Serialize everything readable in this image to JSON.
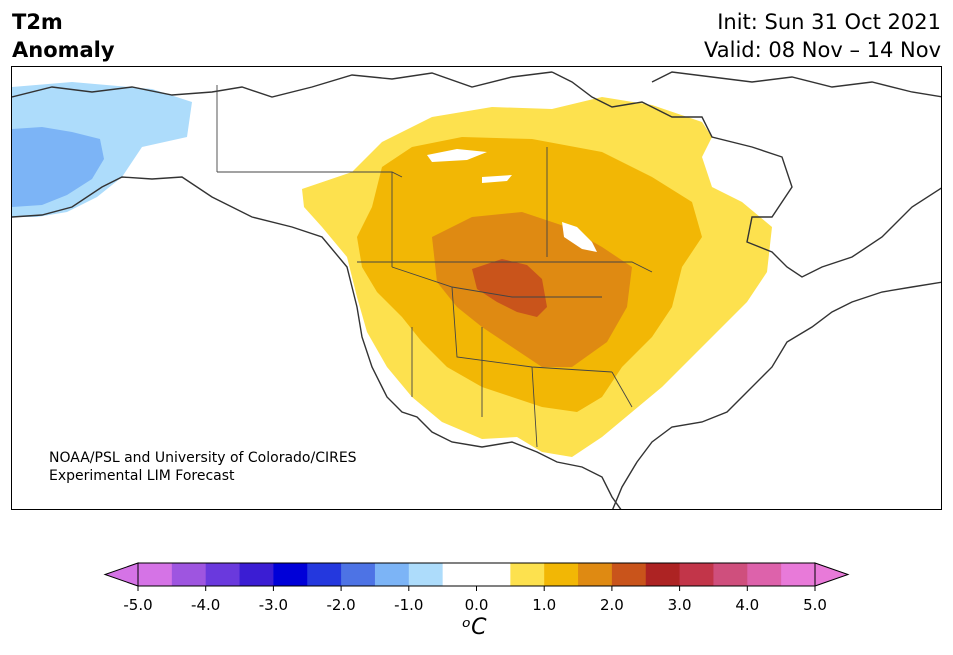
{
  "header": {
    "title_line1": "T2m",
    "title_line2": "Anomaly",
    "init": "Init: Sun 31 Oct 2021",
    "valid": "Valid: 08 Nov – 14 Nov"
  },
  "credit": {
    "line1": "NOAA/PSL and University of Colorado/CIRES",
    "line2": "Experimental LIM Forecast"
  },
  "colorbar": {
    "unit_label": "ᵒC",
    "ticks": [
      "-5.0",
      "-4.0",
      "-3.0",
      "-2.0",
      "-1.0",
      "0.0",
      "1.0",
      "2.0",
      "3.0",
      "4.0",
      "5.0"
    ],
    "colors": [
      "#d573e6",
      "#9e55e0",
      "#6a39dd",
      "#3b1dd3",
      "#0000d8",
      "#2438de",
      "#4d73e5",
      "#7cb4f6",
      "#addcfb",
      "#ffffff",
      "#ffffff",
      "#fde14e",
      "#f2b705",
      "#df8a12",
      "#c9541b",
      "#ad2323",
      "#c23549",
      "#cf4f7d",
      "#dd62ab",
      "#e87ad9"
    ],
    "under_color": "#d573e6",
    "over_color": "#e87ad9"
  },
  "map": {
    "colors": {
      "cold1": "#addcfb",
      "cold2": "#7cb4f6",
      "warm1": "#fde14e",
      "warm2": "#f2b705",
      "warm3": "#df8a12",
      "warm4": "#c9541b",
      "coast": "#333333"
    }
  }
}
